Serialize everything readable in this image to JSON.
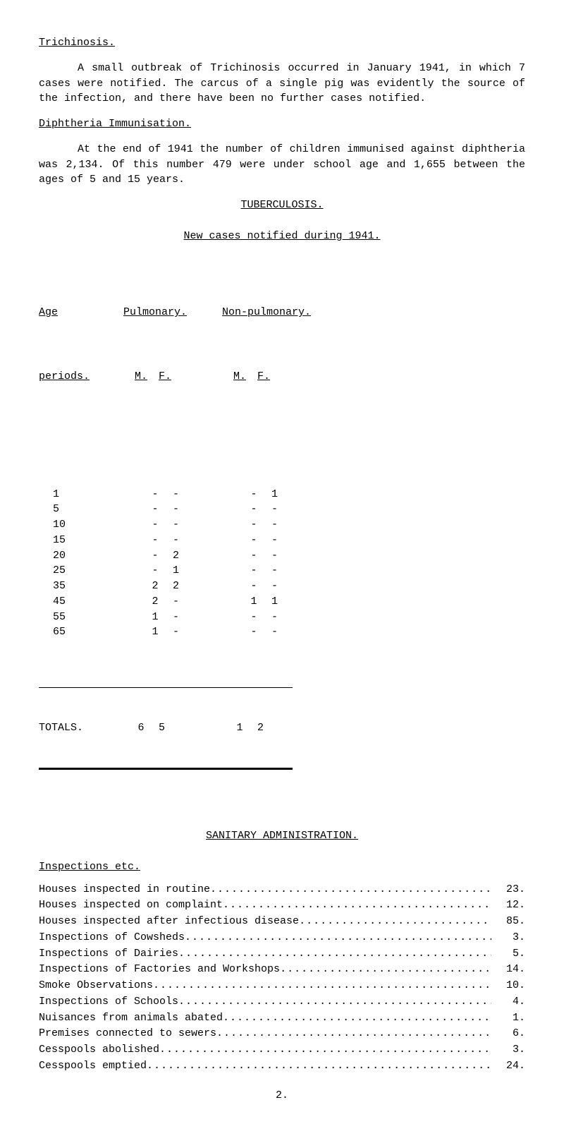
{
  "trichinosis": {
    "heading": "Trichinosis.",
    "para": "A small outbreak of Trichinosis occurred in January 1941, in which 7 cases were notified.  The carcus of a single pig was evidently the source of the infection, and there have been no further cases notified."
  },
  "diphtheria": {
    "heading": "Diphtheria Immunisation.",
    "para": "At the end of 1941 the number of children immunised against diphtheria was 2,134.  Of this number 479 were under school age and 1,655 between the ages of 5 and 15 years."
  },
  "tuberculosis": {
    "heading": "TUBERCULOSIS.",
    "subheading": "New cases notified during 1941.",
    "col_headers": {
      "age": "Age",
      "periods": "periods.",
      "pulmonary": "Pulmonary.",
      "non_pulmonary": "Non-pulmonary.",
      "m": "M.",
      "f": "F."
    },
    "rows": [
      {
        "age": "1",
        "pm": "-",
        "pf": "-",
        "nm": "-",
        "nf": "1"
      },
      {
        "age": "5",
        "pm": "-",
        "pf": "-",
        "nm": "-",
        "nf": "-"
      },
      {
        "age": "10",
        "pm": "-",
        "pf": "-",
        "nm": "-",
        "nf": "-"
      },
      {
        "age": "15",
        "pm": "-",
        "pf": "-",
        "nm": "-",
        "nf": "-"
      },
      {
        "age": "20",
        "pm": "-",
        "pf": "2",
        "nm": "-",
        "nf": "-"
      },
      {
        "age": "25",
        "pm": "-",
        "pf": "1",
        "nm": "-",
        "nf": "-"
      },
      {
        "age": "35",
        "pm": "2",
        "pf": "2",
        "nm": "-",
        "nf": "-"
      },
      {
        "age": "45",
        "pm": "2",
        "pf": "-",
        "nm": "1",
        "nf": "1"
      },
      {
        "age": "55",
        "pm": "1",
        "pf": "-",
        "nm": "-",
        "nf": "-"
      },
      {
        "age": "65",
        "pm": "1",
        "pf": "-",
        "nm": "-",
        "nf": "-"
      }
    ],
    "totals": {
      "label": "TOTALS.",
      "pm": "6",
      "pf": "5",
      "nm": "1",
      "nf": "2"
    }
  },
  "sanitary": {
    "heading": "SANITARY ADMINISTRATION.",
    "subheading": "Inspections etc.",
    "items": [
      {
        "label": "Houses inspected in routine ",
        "value": "23."
      },
      {
        "label": "Houses inspected on complaint ",
        "value": "12."
      },
      {
        "label": "Houses inspected after infectious disease ",
        "value": "85."
      },
      {
        "label": "Inspections of Cowsheds ",
        "value": "3."
      },
      {
        "label": "Inspections of Dairies ",
        "value": "5."
      },
      {
        "label": "Inspections of Factories and Workshops ",
        "value": "14."
      },
      {
        "label": "Smoke Observations ",
        "value": "10."
      },
      {
        "label": "Inspections of Schools ",
        "value": "4."
      },
      {
        "label": "Nuisances from animals abated ",
        "value": "1."
      },
      {
        "label": "Premises connected to sewers ",
        "value": "6."
      },
      {
        "label": "Cesspools abolished ",
        "value": "3."
      },
      {
        "label": "Cesspools emptied ",
        "value": "24."
      }
    ]
  },
  "page_number": "2.",
  "dots": "............................................................"
}
